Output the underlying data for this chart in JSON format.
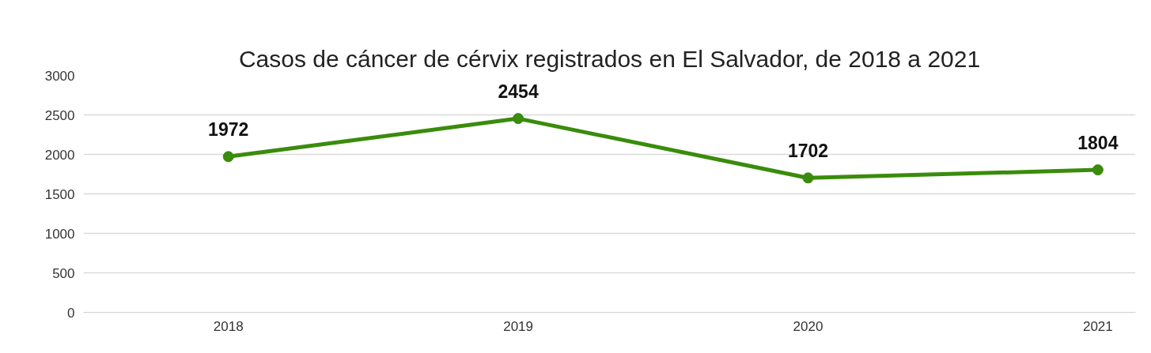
{
  "chart_data": {
    "type": "line",
    "title": "Casos de cáncer de cérvix registrados en El Salvador, de 2018 a 2021",
    "categories": [
      "2018",
      "2019",
      "2020",
      "2021"
    ],
    "series": [
      {
        "color": "#3a8c0c",
        "values": [
          1972,
          2454,
          1702,
          1804
        ]
      }
    ],
    "ylim": [
      0,
      3000
    ],
    "yticks": [
      0,
      500,
      1000,
      1500,
      2000,
      2500,
      3000
    ],
    "grid": "y",
    "marker": "circle",
    "line_style": "solid",
    "data_labels": true
  }
}
